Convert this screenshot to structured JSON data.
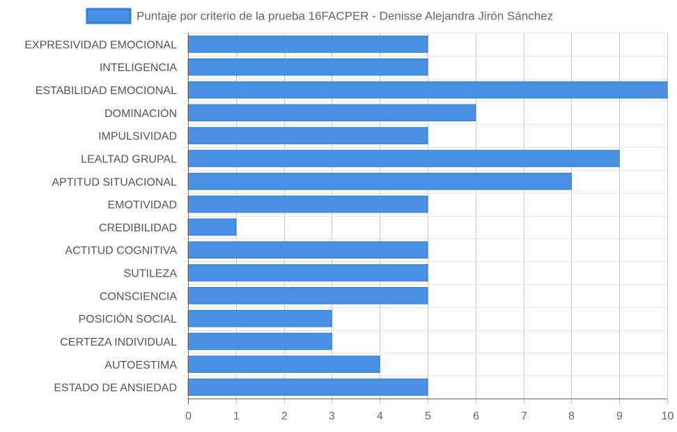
{
  "chart_data": {
    "type": "bar",
    "orientation": "horizontal",
    "series": [
      {
        "name": "Puntaje por criterio de la prueba 16FACPER - Denisse Alejandra Jirón Sánchez",
        "color": "#4a90e2",
        "values": [
          5,
          5,
          10,
          6,
          5,
          9,
          8,
          5,
          1,
          5,
          5,
          5,
          3,
          3,
          4,
          5
        ]
      }
    ],
    "categories": [
      "EXPRESIVIDAD EMOCIONAL",
      "INTELIGENCIA",
      "ESTABILIDAD EMOCIONAL",
      "DOMINACIÓN",
      "IMPULSIVIDAD",
      "LEALTAD GRUPAL",
      "APTITUD SITUACIONAL",
      "EMOTIVIDAD",
      "CREDIBILIDAD",
      "ACTITUD COGNITIVA",
      "SUTILEZA",
      "CONSCIENCIA",
      "POSICIÓN SOCIAL",
      "CERTEZA INDIVIDUAL",
      "AUTOESTIMA",
      "ESTADO DE ANSIEDAD"
    ],
    "xlim": [
      0,
      10
    ],
    "xticks": [
      "0",
      "1",
      "2",
      "3",
      "4",
      "5",
      "6",
      "7",
      "8",
      "9",
      "10"
    ],
    "grid": true,
    "legend_position": "top"
  }
}
